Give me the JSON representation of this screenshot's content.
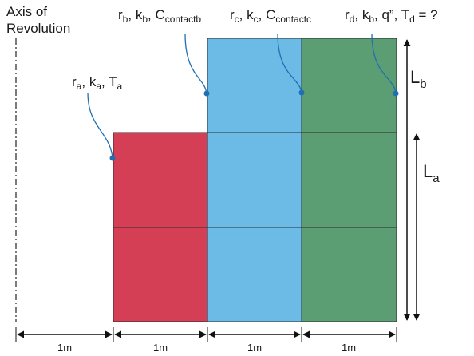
{
  "axis_label": {
    "line1": "Axis of",
    "line2": "Revolution"
  },
  "colors": {
    "a": "#d53f55",
    "b": "#6cbbe6",
    "d": "#5c9e73",
    "grid_line": "#2b2b2b",
    "callout": "#1f6fb2"
  },
  "label_a": {
    "r": "r",
    "r_sub": "a",
    "k": "k",
    "k_sub": "a",
    "T": "T",
    "T_sub": "a"
  },
  "label_b": {
    "r": "r",
    "r_sub": "b",
    "k": "k",
    "k_sub": "b",
    "C": "C",
    "C_sub": "contactb"
  },
  "label_c": {
    "r": "r",
    "r_sub": "c",
    "k": "k",
    "k_sub": "c",
    "C": "C",
    "C_sub": "contactc"
  },
  "label_d": {
    "r": "r",
    "r_sub": "d",
    "k": "k",
    "k_sub": "b",
    "q": "q”",
    "T": "T",
    "T_sub": "d",
    "eq": "= ?"
  },
  "lengths": {
    "Lb": "L",
    "Lb_sub": "b",
    "La": "L",
    "La_sub": "a"
  },
  "dimensions": [
    "1m",
    "1m",
    "1m",
    "1m"
  ]
}
